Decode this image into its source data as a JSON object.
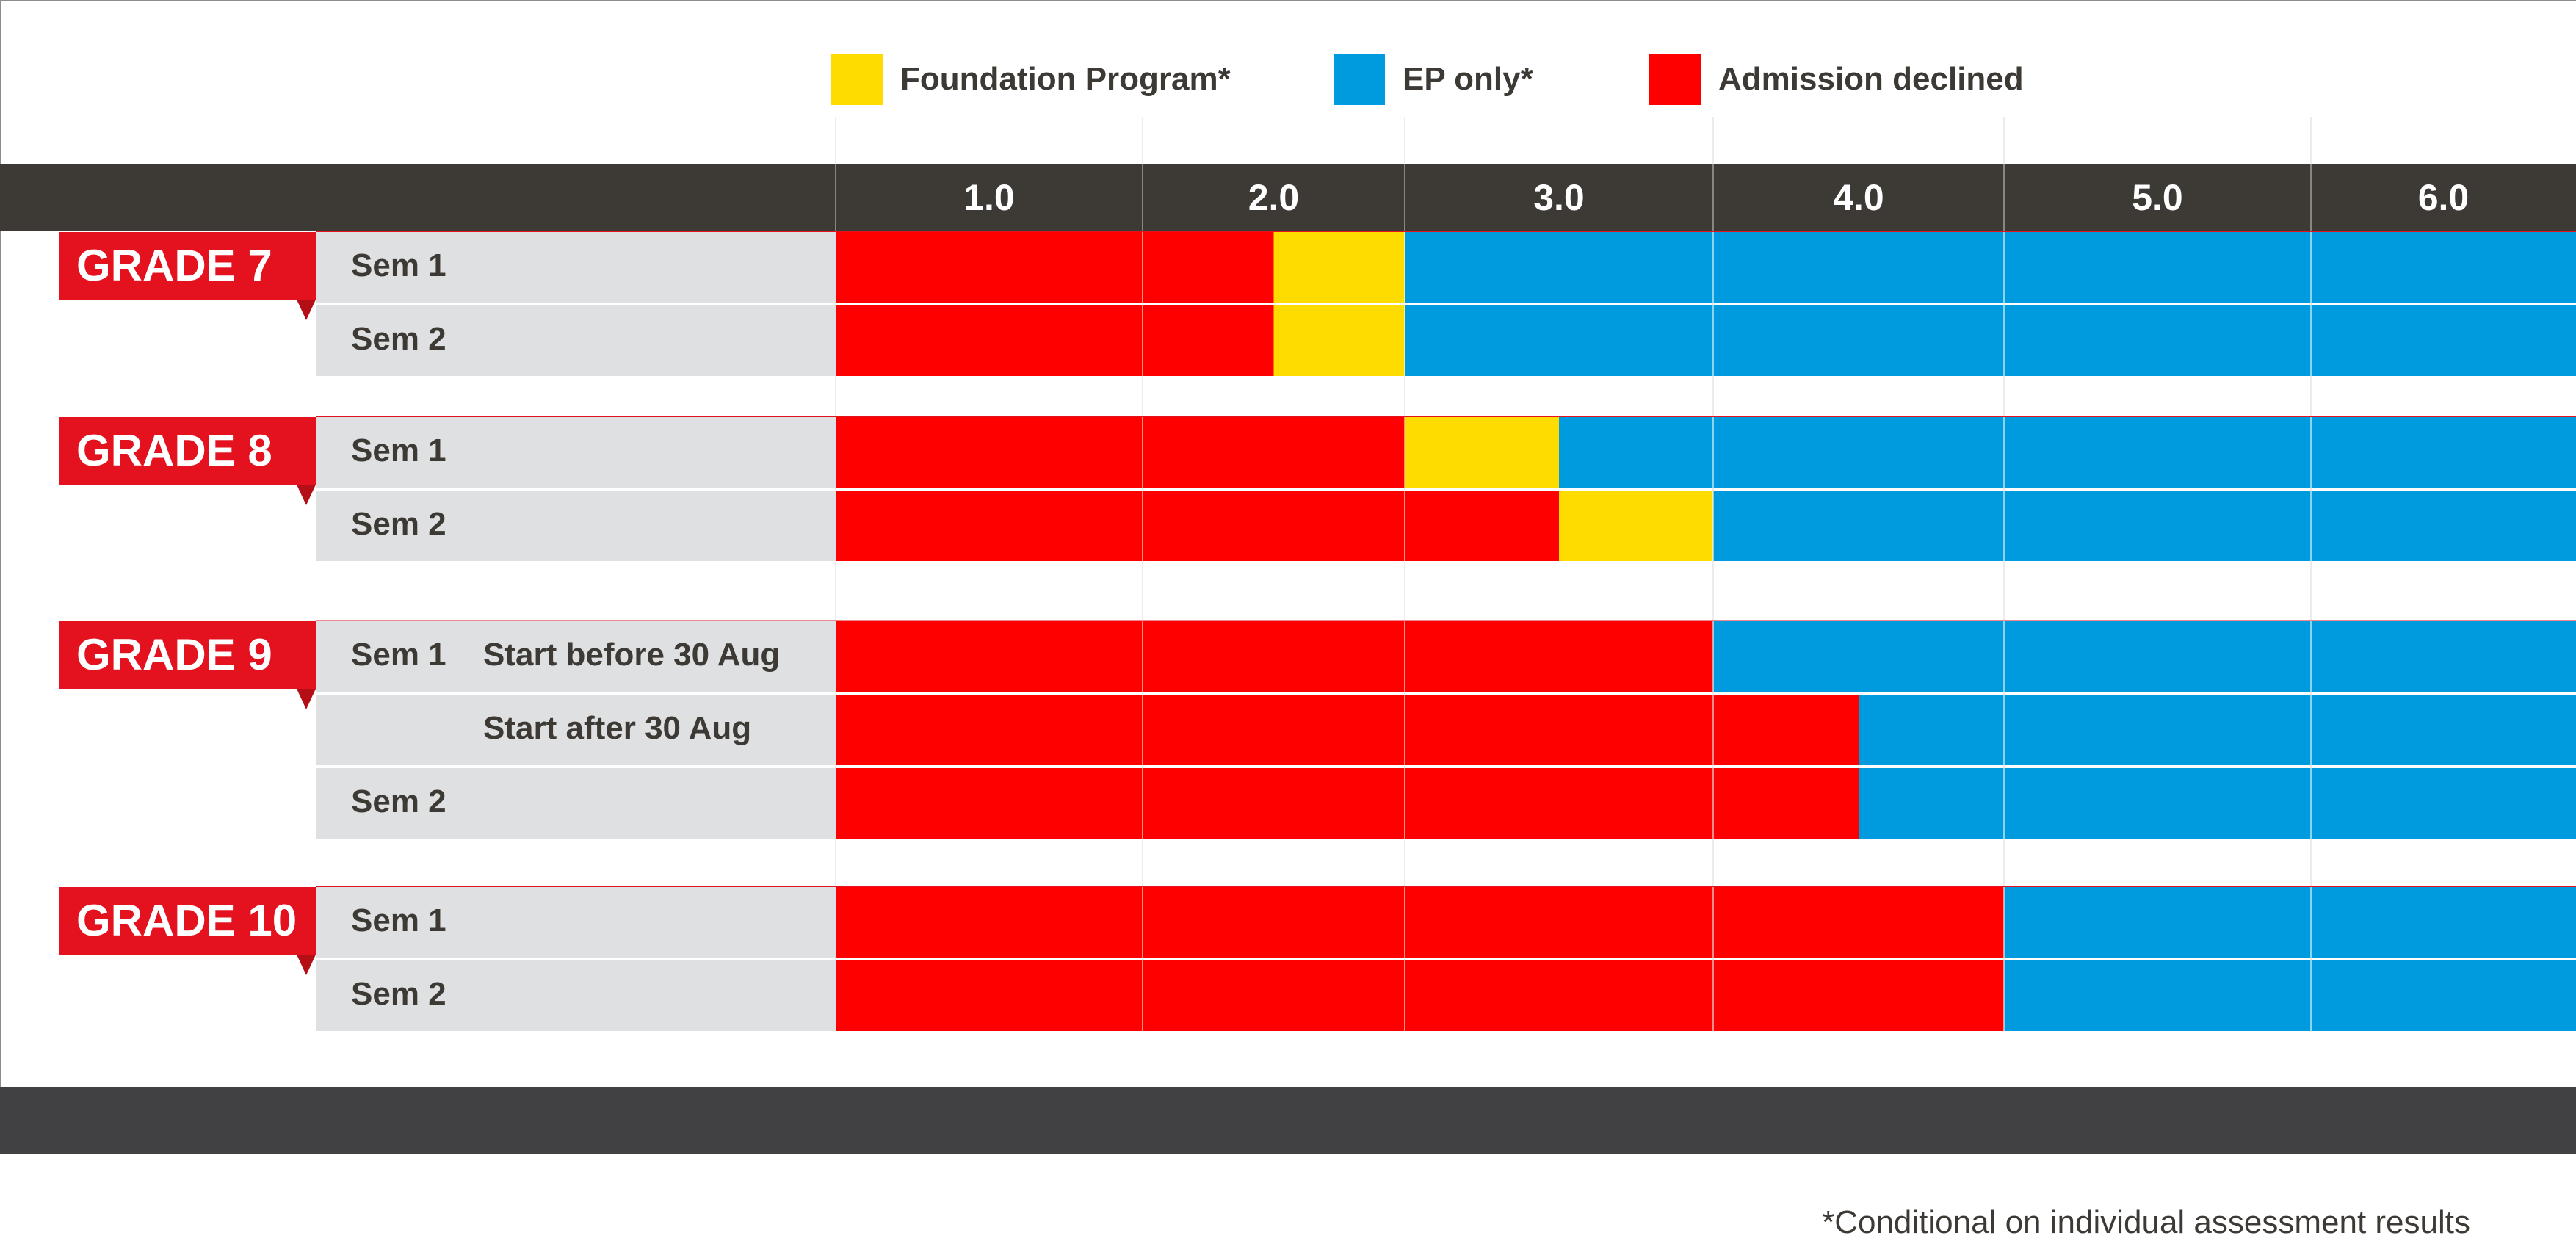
{
  "legend": [
    {
      "label": "Foundation Program*",
      "color": "#FFDC00",
      "icon": "yellow-square"
    },
    {
      "label": "EP only*",
      "color": "#009BDF",
      "icon": "blue-square"
    },
    {
      "label": "Admission declined",
      "color": "#FF0000",
      "icon": "red-square"
    }
  ],
  "footnote": "*Conditional on individual assessment results",
  "colors": {
    "admission_declined": "#FF0000",
    "foundation_program": "#FFDC00",
    "ep_only": "#009BDF",
    "header_bar": "#3D3935",
    "footer_bar": "#414042",
    "row_label_bg": "#DFE0E1",
    "grade_tag": "#E4111F",
    "grade_tag_shadow": "#B40F17"
  },
  "chart_data": {
    "type": "bar",
    "orientation": "horizontal-stacked",
    "x_ticks": [
      "1.0",
      "2.0",
      "3.0",
      "4.0",
      "5.0",
      "6.0"
    ],
    "xlim": [
      0.5,
      6.5
    ],
    "grid": true,
    "legend_position": "top",
    "category_order": [
      "admission_declined",
      "foundation_program",
      "ep_only"
    ],
    "groups": [
      {
        "grade": "GRADE 7",
        "rows": [
          {
            "sem": "Sem 1",
            "note": "",
            "segments": [
              {
                "category": "admission_declined",
                "from": 0.5,
                "to": 2.0
              },
              {
                "category": "foundation_program",
                "from": 2.0,
                "to": 2.5
              },
              {
                "category": "ep_only",
                "from": 2.5,
                "to": 6.5
              }
            ]
          },
          {
            "sem": "Sem 2",
            "note": "",
            "segments": [
              {
                "category": "admission_declined",
                "from": 0.5,
                "to": 2.0
              },
              {
                "category": "foundation_program",
                "from": 2.0,
                "to": 2.5
              },
              {
                "category": "ep_only",
                "from": 2.5,
                "to": 6.5
              }
            ]
          }
        ]
      },
      {
        "grade": "GRADE 8",
        "rows": [
          {
            "sem": "Sem 1",
            "note": "",
            "segments": [
              {
                "category": "admission_declined",
                "from": 0.5,
                "to": 2.5
              },
              {
                "category": "foundation_program",
                "from": 2.5,
                "to": 3.0
              },
              {
                "category": "ep_only",
                "from": 3.0,
                "to": 6.5
              }
            ]
          },
          {
            "sem": "Sem 2",
            "note": "",
            "segments": [
              {
                "category": "admission_declined",
                "from": 0.5,
                "to": 3.0
              },
              {
                "category": "foundation_program",
                "from": 3.0,
                "to": 3.5
              },
              {
                "category": "ep_only",
                "from": 3.5,
                "to": 6.5
              }
            ]
          }
        ]
      },
      {
        "grade": "GRADE 9",
        "rows": [
          {
            "sem": "Sem 1",
            "note": "Start before 30 Aug",
            "segments": [
              {
                "category": "admission_declined",
                "from": 0.5,
                "to": 3.5
              },
              {
                "category": "ep_only",
                "from": 3.5,
                "to": 6.5
              }
            ]
          },
          {
            "sem": "",
            "note": "Start after 30 Aug",
            "segments": [
              {
                "category": "admission_declined",
                "from": 0.5,
                "to": 4.0
              },
              {
                "category": "ep_only",
                "from": 4.0,
                "to": 6.5
              }
            ]
          },
          {
            "sem": "Sem 2",
            "note": "",
            "segments": [
              {
                "category": "admission_declined",
                "from": 0.5,
                "to": 4.0
              },
              {
                "category": "ep_only",
                "from": 4.0,
                "to": 6.5
              }
            ]
          }
        ]
      },
      {
        "grade": "GRADE 10",
        "rows": [
          {
            "sem": "Sem 1",
            "note": "",
            "segments": [
              {
                "category": "admission_declined",
                "from": 0.5,
                "to": 4.5
              },
              {
                "category": "ep_only",
                "from": 4.5,
                "to": 6.5
              }
            ]
          },
          {
            "sem": "Sem 2",
            "note": "",
            "segments": [
              {
                "category": "admission_declined",
                "from": 0.5,
                "to": 4.5
              },
              {
                "category": "ep_only",
                "from": 4.5,
                "to": 6.5
              }
            ]
          }
        ]
      }
    ]
  }
}
